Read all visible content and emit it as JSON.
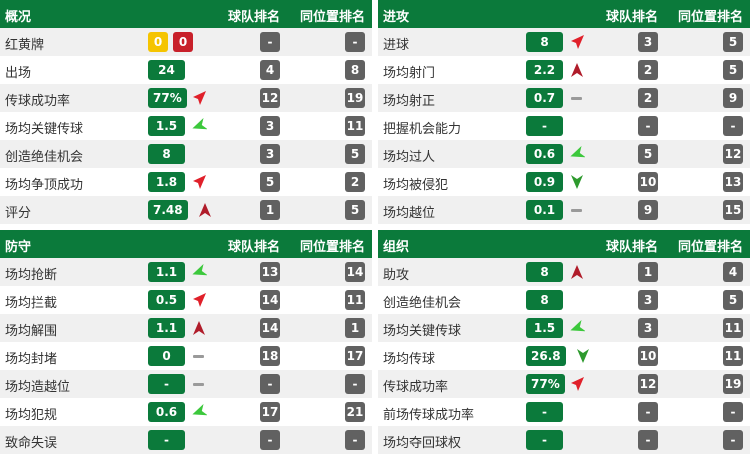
{
  "columns": {
    "team_rank": "球队排名",
    "position_rank": "同位置排名"
  },
  "colors": {
    "header": "#0b7a3b",
    "rank": "#616161",
    "yellow": "#f5c400",
    "red": "#c8202a"
  },
  "panels": [
    {
      "title": "概况",
      "rows": [
        {
          "label": "红黄牌",
          "cards": {
            "yellow": "0",
            "red": "0"
          },
          "team": "-",
          "pos": "-"
        },
        {
          "label": "出场",
          "value": "24",
          "trend": "",
          "team": "4",
          "pos": "8"
        },
        {
          "label": "传球成功率",
          "value": "77%",
          "trend": "up-right",
          "team": "12",
          "pos": "19"
        },
        {
          "label": "场均关键传球",
          "value": "1.5",
          "trend": "left",
          "team": "3",
          "pos": "11"
        },
        {
          "label": "创造绝佳机会",
          "value": "8",
          "trend": "",
          "team": "3",
          "pos": "5"
        },
        {
          "label": "场均争顶成功",
          "value": "1.8",
          "trend": "up-right",
          "team": "5",
          "pos": "2"
        },
        {
          "label": "评分",
          "value": "7.48",
          "trend": "up",
          "team": "1",
          "pos": "5"
        }
      ]
    },
    {
      "title": "进攻",
      "rows": [
        {
          "label": "进球",
          "value": "8",
          "trend": "up-right",
          "team": "3",
          "pos": "5"
        },
        {
          "label": "场均射门",
          "value": "2.2",
          "trend": "up",
          "team": "2",
          "pos": "5"
        },
        {
          "label": "场均射正",
          "value": "0.7",
          "trend": "flat",
          "team": "2",
          "pos": "9"
        },
        {
          "label": "把握机会能力",
          "value": "-",
          "trend": "",
          "team": "-",
          "pos": "-"
        },
        {
          "label": "场均过人",
          "value": "0.6",
          "trend": "left",
          "team": "5",
          "pos": "12"
        },
        {
          "label": "场均被侵犯",
          "value": "0.9",
          "trend": "down",
          "team": "10",
          "pos": "13"
        },
        {
          "label": "场均越位",
          "value": "0.1",
          "trend": "flat",
          "team": "9",
          "pos": "15"
        }
      ]
    },
    {
      "title": "防守",
      "rows": [
        {
          "label": "场均抢断",
          "value": "1.1",
          "trend": "left",
          "team": "13",
          "pos": "14"
        },
        {
          "label": "场均拦截",
          "value": "0.5",
          "trend": "up-right",
          "team": "14",
          "pos": "11"
        },
        {
          "label": "场均解围",
          "value": "1.1",
          "trend": "up",
          "team": "14",
          "pos": "1"
        },
        {
          "label": "场均封堵",
          "value": "0",
          "trend": "flat",
          "team": "18",
          "pos": "17"
        },
        {
          "label": "场均造越位",
          "value": "-",
          "trend": "flat",
          "team": "-",
          "pos": "-"
        },
        {
          "label": "场均犯规",
          "value": "0.6",
          "trend": "left",
          "team": "17",
          "pos": "21"
        },
        {
          "label": "致命失误",
          "value": "-",
          "trend": "",
          "team": "-",
          "pos": "-"
        }
      ]
    },
    {
      "title": "组织",
      "rows": [
        {
          "label": "助攻",
          "value": "8",
          "trend": "up",
          "team": "1",
          "pos": "4"
        },
        {
          "label": "创造绝佳机会",
          "value": "8",
          "trend": "",
          "team": "3",
          "pos": "5"
        },
        {
          "label": "场均关键传球",
          "value": "1.5",
          "trend": "left",
          "team": "3",
          "pos": "11"
        },
        {
          "label": "场均传球",
          "value": "26.8",
          "trend": "down",
          "team": "10",
          "pos": "11"
        },
        {
          "label": "传球成功率",
          "value": "77%",
          "trend": "up-right",
          "team": "12",
          "pos": "19"
        },
        {
          "label": "前场传球成功率",
          "value": "-",
          "trend": "",
          "team": "-",
          "pos": "-"
        },
        {
          "label": "场均夺回球权",
          "value": "-",
          "trend": "",
          "team": "-",
          "pos": "-"
        }
      ]
    }
  ]
}
